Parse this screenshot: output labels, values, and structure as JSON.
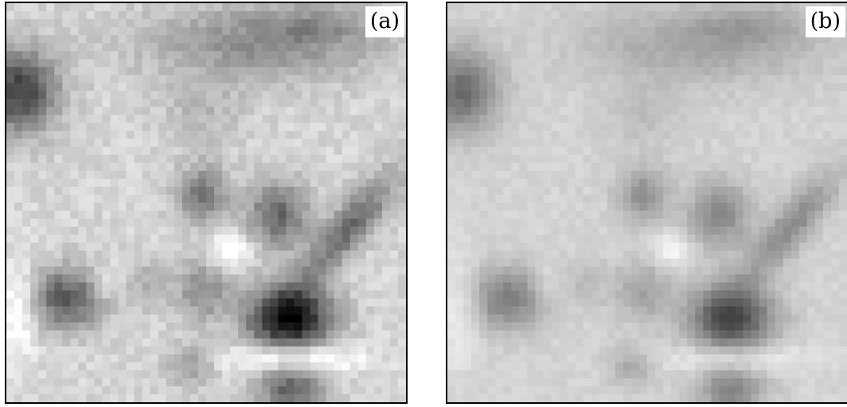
{
  "panels": [
    {
      "label": "(a)",
      "variant": "sharp"
    },
    {
      "label": "(b)",
      "variant": "smoothed"
    }
  ],
  "colors": {
    "frame": "#000000",
    "background": "#dadada",
    "label_bg": "#ffffff"
  }
}
